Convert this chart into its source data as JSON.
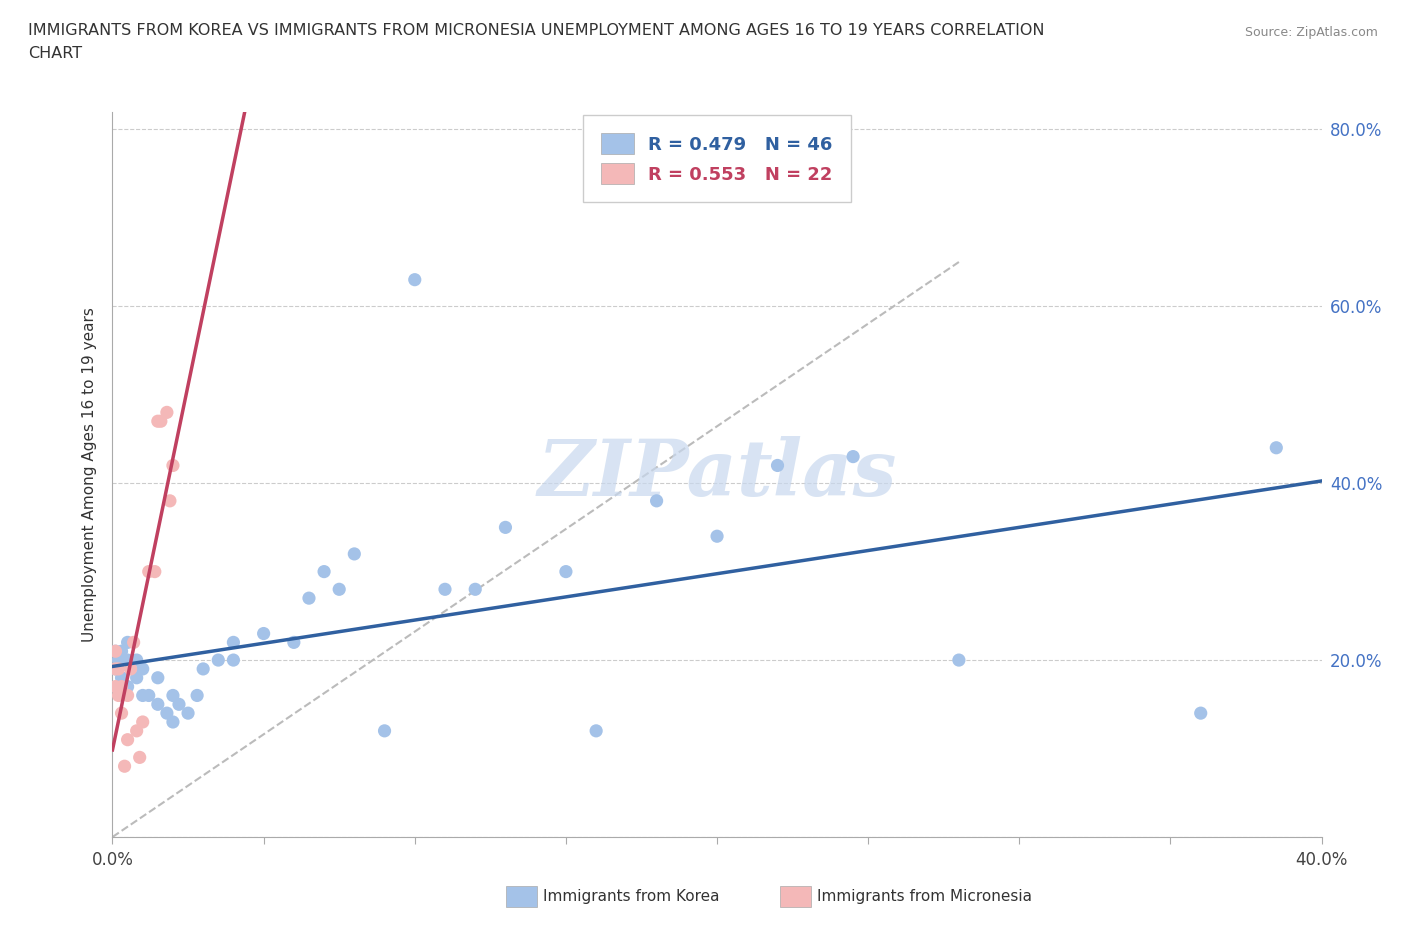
{
  "title_line1": "IMMIGRANTS FROM KOREA VS IMMIGRANTS FROM MICRONESIA UNEMPLOYMENT AMONG AGES 16 TO 19 YEARS CORRELATION",
  "title_line2": "CHART",
  "source": "Source: ZipAtlas.com",
  "ylabel": "Unemployment Among Ages 16 to 19 years",
  "xlim": [
    0.0,
    0.4
  ],
  "ylim": [
    0.0,
    0.82
  ],
  "xticks": [
    0.0,
    0.05,
    0.1,
    0.15,
    0.2,
    0.25,
    0.3,
    0.35,
    0.4
  ],
  "xticklabels": [
    "0.0%",
    "",
    "",
    "",
    "",
    "",
    "",
    "",
    "40.0%"
  ],
  "yticks": [
    0.0,
    0.2,
    0.4,
    0.6,
    0.8
  ],
  "yticklabels_right": [
    "",
    "20.0%",
    "40.0%",
    "60.0%",
    "80.0%"
  ],
  "korea_R": 0.479,
  "korea_N": 46,
  "micronesia_R": 0.553,
  "micronesia_N": 22,
  "korea_color": "#a4c2e8",
  "micronesia_color": "#f4b8b8",
  "korea_line_color": "#3060a0",
  "micronesia_line_color": "#c04060",
  "watermark": "ZIPatlas",
  "korea_points_x": [
    0.001,
    0.001,
    0.002,
    0.002,
    0.003,
    0.003,
    0.005,
    0.005,
    0.005,
    0.008,
    0.008,
    0.01,
    0.01,
    0.012,
    0.015,
    0.015,
    0.018,
    0.02,
    0.02,
    0.022,
    0.025,
    0.028,
    0.03,
    0.035,
    0.04,
    0.04,
    0.05,
    0.06,
    0.065,
    0.07,
    0.075,
    0.08,
    0.09,
    0.1,
    0.11,
    0.12,
    0.13,
    0.15,
    0.16,
    0.18,
    0.2,
    0.22,
    0.245,
    0.28,
    0.36,
    0.385
  ],
  "korea_points_y": [
    0.19,
    0.21,
    0.17,
    0.2,
    0.18,
    0.21,
    0.17,
    0.2,
    0.22,
    0.18,
    0.2,
    0.16,
    0.19,
    0.16,
    0.15,
    0.18,
    0.14,
    0.13,
    0.16,
    0.15,
    0.14,
    0.16,
    0.19,
    0.2,
    0.2,
    0.22,
    0.23,
    0.22,
    0.27,
    0.3,
    0.28,
    0.32,
    0.12,
    0.63,
    0.28,
    0.28,
    0.35,
    0.3,
    0.12,
    0.38,
    0.34,
    0.42,
    0.43,
    0.2,
    0.14,
    0.44
  ],
  "micronesia_points_x": [
    0.001,
    0.001,
    0.001,
    0.002,
    0.002,
    0.003,
    0.003,
    0.004,
    0.005,
    0.005,
    0.006,
    0.007,
    0.008,
    0.009,
    0.01,
    0.012,
    0.014,
    0.015,
    0.016,
    0.018,
    0.019,
    0.02
  ],
  "micronesia_points_y": [
    0.17,
    0.19,
    0.21,
    0.16,
    0.19,
    0.14,
    0.17,
    0.08,
    0.11,
    0.16,
    0.19,
    0.22,
    0.12,
    0.09,
    0.13,
    0.3,
    0.3,
    0.47,
    0.47,
    0.48,
    0.38,
    0.42
  ],
  "ref_line_x": [
    0.0,
    0.28
  ],
  "ref_line_y": [
    0.0,
    0.65
  ]
}
